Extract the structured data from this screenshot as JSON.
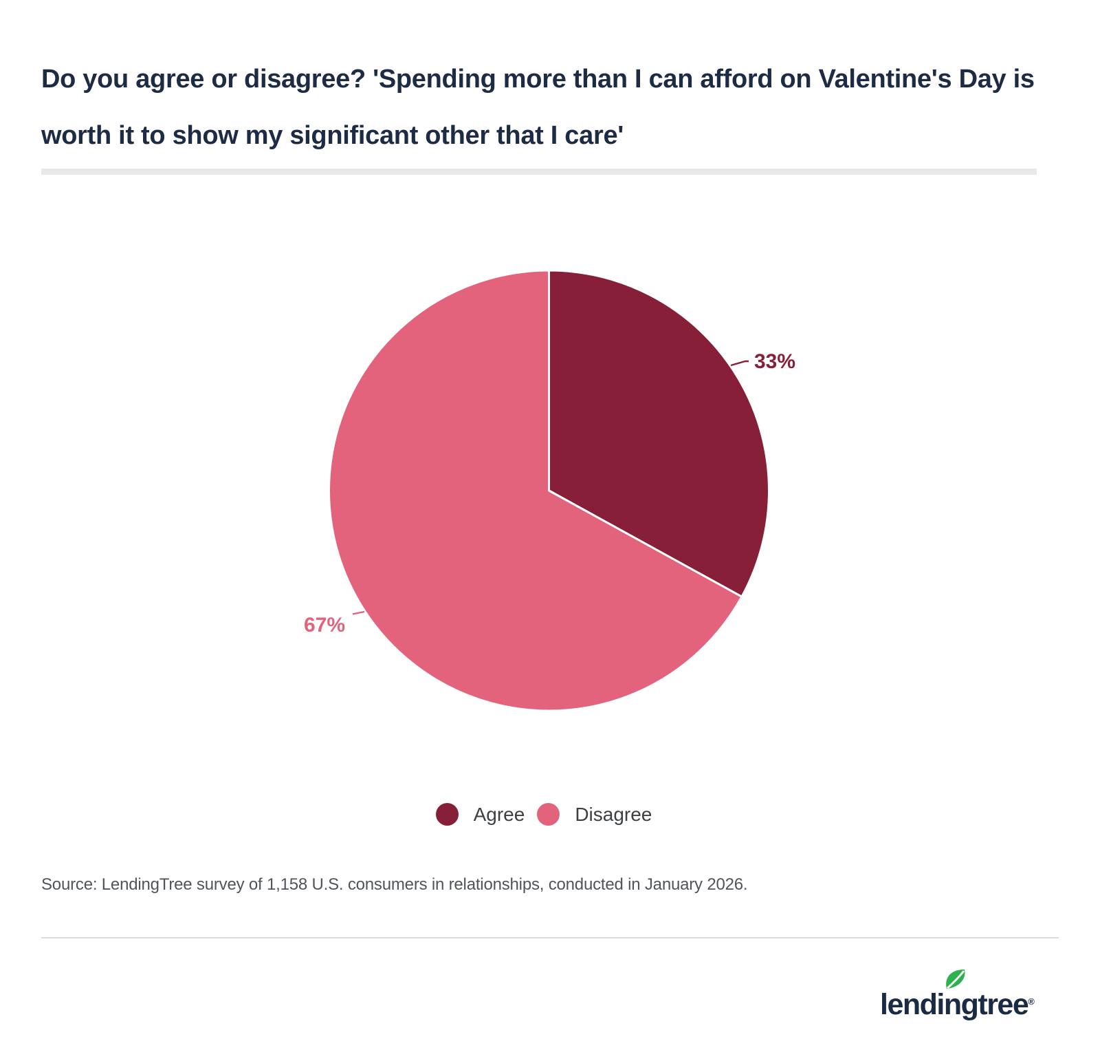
{
  "title": {
    "text": "Do you agree or disagree? 'Spending more than I can afford on Valentine's Day is worth it to show my significant other that I care'"
  },
  "chart_data": {
    "type": "pie",
    "title": "Do you agree or disagree? 'Spending more than I can afford on Valentine's Day is worth it to show my significant other that I care'",
    "slices": [
      {
        "label": "Agree",
        "value": 33,
        "display": "33%",
        "color": "#861f37"
      },
      {
        "label": "Disagree",
        "value": 67,
        "display": "67%",
        "color": "#e3637d"
      }
    ],
    "start_angle_deg": 0,
    "direction": "clockwise",
    "legend_position": "bottom"
  },
  "labels": {
    "agree_pct": "33%",
    "disagree_pct": "67%"
  },
  "legend": {
    "items": [
      {
        "label": "Agree",
        "color": "#861f37"
      },
      {
        "label": "Disagree",
        "color": "#e3637d"
      }
    ]
  },
  "source": {
    "text": "Source: LendingTree survey of 1,158 U.S. consumers in relationships, conducted in January 2026."
  },
  "branding": {
    "logo_text": "lendingtree",
    "registered": "®",
    "leaf_color": "#2db14e",
    "text_color": "#1b2b44"
  }
}
